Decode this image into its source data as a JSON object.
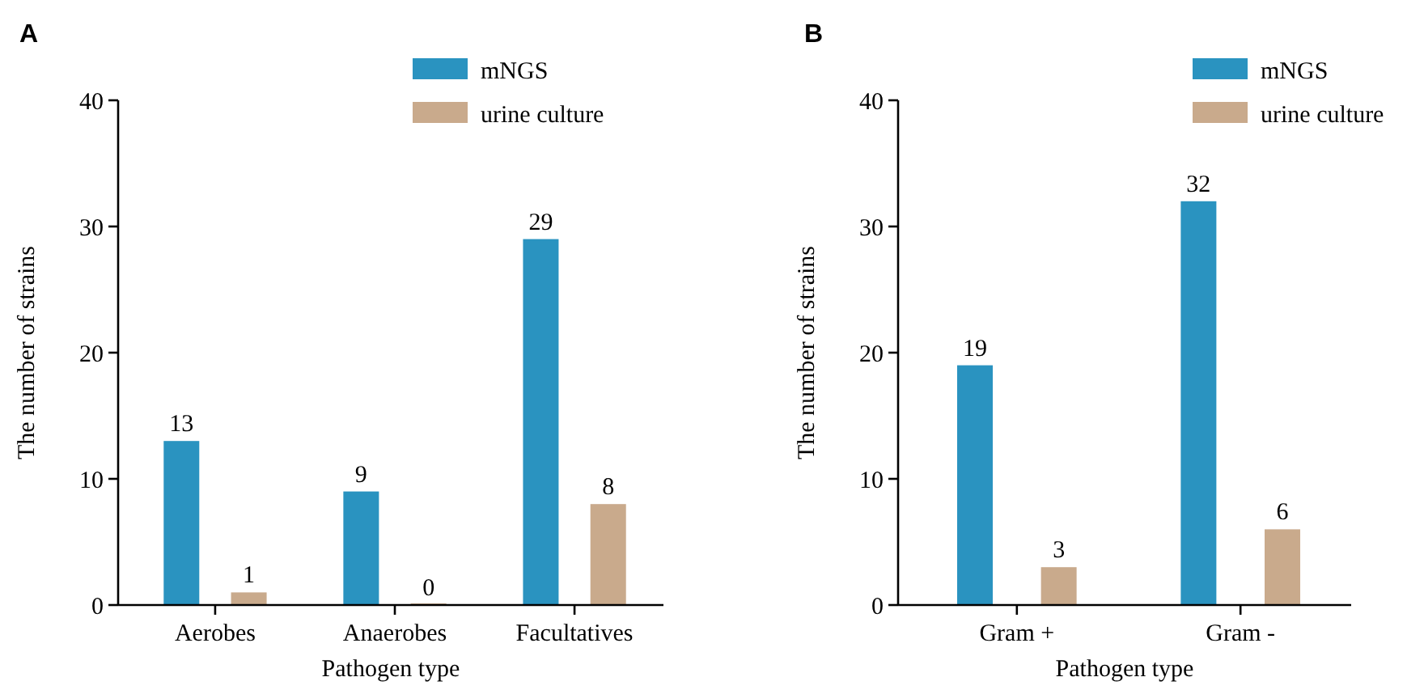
{
  "chart_data": [
    {
      "type": "bar",
      "title": "A",
      "categories": [
        "Aerobes",
        "Anaerobes",
        "Facultatives"
      ],
      "xlabel": "Pathogen type",
      "ylabel": "The number of strains",
      "series": [
        {
          "name": "mNGS",
          "color": "#2a93c0",
          "values": [
            13,
            9,
            29
          ]
        },
        {
          "name": "urine culture",
          "color": "#c9aa8c",
          "values": [
            1,
            0,
            8
          ]
        }
      ],
      "ylim": [
        0,
        40
      ],
      "yticks": [
        0,
        10,
        20,
        30,
        40
      ],
      "data_labels": true,
      "legend": "top right",
      "grid": false
    },
    {
      "type": "bar",
      "title": "B",
      "categories": [
        "Gram +",
        "Gram -"
      ],
      "xlabel": "Pathogen type",
      "ylabel": "The number of strains",
      "series": [
        {
          "name": "mNGS",
          "color": "#2a93c0",
          "values": [
            19,
            32
          ]
        },
        {
          "name": "urine culture",
          "color": "#c9aa8c",
          "values": [
            3,
            6
          ]
        }
      ],
      "ylim": [
        0,
        40
      ],
      "yticks": [
        0,
        10,
        20,
        30,
        40
      ],
      "data_labels": true,
      "legend": "top right",
      "grid": false
    }
  ]
}
